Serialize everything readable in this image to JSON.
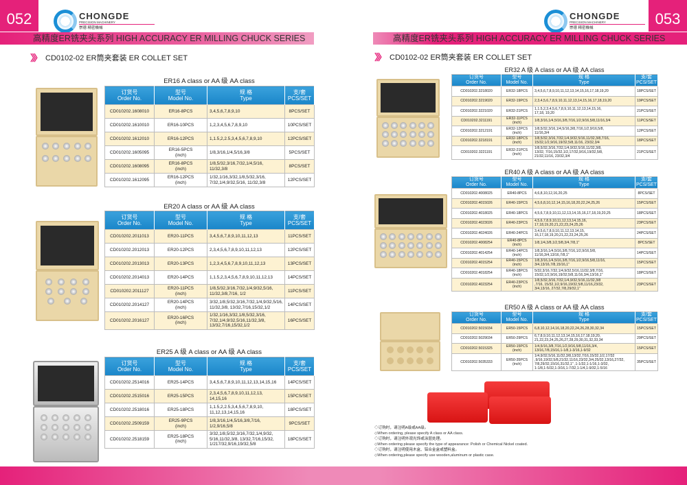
{
  "left_page": {
    "page_number": "052"
  },
  "right_page": {
    "page_number": "053"
  },
  "logo": {
    "name": "CHONGDE",
    "tagline": "PRECISION MACHINERY",
    "chinese": "崇德 精密機械"
  },
  "series_title": "高精度ER铣夹头系列   HIGH ACCURACY ER MILLING CHUCK SERIES",
  "section_title": "CD0102-02 ER筒夹套装  ER COLLET SET",
  "header": {
    "order_cn": "订货号",
    "order_en": "Order No.",
    "model_cn": "型号",
    "model_en": "Model No.",
    "type_cn": "规 格",
    "type_en": "Type",
    "pcs_cn": "支/套",
    "pcs_en": "PCS/SET"
  },
  "tables": [
    {
      "title": "ER16 A class  or AA 级 AA class",
      "rows": [
        [
          "CD010202.1608010",
          "ER16-8PCS",
          "3,4,5,6,7,8,9,10",
          "8PCS/SET"
        ],
        [
          "CD010202.1610010",
          "ER16-10PCS",
          "1,2,3,4,5,6,7,8,9,10",
          "10PCS/SET"
        ],
        [
          "CD010202.1612010",
          "ER16-12PCS",
          "1,1.5,2,2.5,3,4,5,6,7,8,9,10",
          "12PCS/SET"
        ],
        [
          "CD010202.1605095",
          "ER16-5PCS\n(inch)",
          "1/8,3/16,1/4,5/16,3/8",
          "5PCS/SET"
        ],
        [
          "CD010202.1608095",
          "ER16-8PCS\n(inch)",
          "1/8,5/32,3/16,7/32,1/4,5/16,\n11/32,3/8",
          "8PCS/SET"
        ],
        [
          "CD010202.1612095",
          "ER16-12PCS\n(inch)",
          "1/32,1/16,3/32,1/8,5/32,3/16,\n7/32,1/4,9/32,5/16, 11/32,3/8",
          "12PCS/SET"
        ]
      ]
    },
    {
      "title": "ER20 A class  or AA 级 AA class",
      "rows": [
        [
          "CD010202.2011013",
          "ER20-11PCS",
          "3,4,5,6,7,8,9,10,11,12,13",
          "11PCS/SET"
        ],
        [
          "CD010202.2012013",
          "ER20-12PCS",
          "2,3,4,5,6,7,8,9,10,11,12,13",
          "12PCS/SET"
        ],
        [
          "CD010202.2013013",
          "ER20-13PCS",
          "1,2,3,4,5,6,7,8,9,10,11,12,13",
          "13PCS/SET"
        ],
        [
          "CD010202.2014013",
          "ER20-14PCS",
          "1,1.5,2,3,4,5,6,7,8,9,10,11,12,13",
          "14PCS/SET"
        ],
        [
          "CD010202.2011127",
          "ER20-11PCS\n(inch)",
          "1/8,5/32,3/16,7/32,1/4,9/32,5/16,\n11/32,3/8,7/16, 1/2",
          "11PCS/SET"
        ],
        [
          "CD010202.2014127",
          "ER20-14PCS\n(inch)",
          "3/32,1/8,5/32,3/16,7/32,1/4,9/32,5/16,\n11/32,3/8, 13/32,7/16,15/32,1/2",
          "14PCS/SET"
        ],
        [
          "CD010202.2016127",
          "ER20-16PCS\n(inch)",
          "1/32,1/16,3/32,1/8,5/32,3/16,\n7/32,1/4,9/32,5/16,11/32,3/8,\n13/32,7/16,15/32,1/2",
          "16PCS/SET"
        ]
      ]
    },
    {
      "title": "ER25 A 级 A class  or AA 级 AA class",
      "rows": [
        [
          "CD010202.2514016",
          "ER25-14PCS",
          "3,4,5,6,7,8,9,10,11,12,13,14,15,16",
          "14PCS/SET"
        ],
        [
          "CD010202.2515016",
          "ER25-15PCS",
          "2,3,4,5,6,7,8,9,10,11,12,13,\n14,15,16",
          "15PCS/SET"
        ],
        [
          "CD010202.2518016",
          "ER25-18PCS",
          "1,1.5,2,2.5,3,4,5,6,7,8,9,10,\n11,12,13,14,15,16",
          "18PCS/SET"
        ],
        [
          "CD010202.2509159",
          "ER25-9PCS\n(inch)",
          "1/8,3/16,1/4,5/16,3/8,7/16,\n1/2,9/16,5/8",
          "9PCS/SET"
        ],
        [
          "CD010202.2518159",
          "ER25-18PCS\n(inch)",
          "3/32,1/8,5/32,3/16,7/32,1/4,9/32,\n5/16,11/32,3/8, 13/32,7/16,15/32,\n1/217/32,9/16,19/32,5/8",
          "18PCS/SET"
        ]
      ]
    },
    {
      "title": "ER32 A 级 A class or AA 级 AA class",
      "rows": [
        [
          "CD010202.3218020",
          "ER32-18PCS",
          "3,4,5,6,7,8,9,10,11,12,13,14,15,16,17,18,19,20",
          "18PCS/SET"
        ],
        [
          "CD010202.3219020",
          "ER32-19PCS",
          "2,3,4,5,6,7,8,9,10,11,12,13,14,15,16,17,18,19,20",
          "19PCS/SET"
        ],
        [
          "CD010202.3221020",
          "ER32-21PCS",
          "1,1.5,2,3,4,5,6,7,8,9,10,11,12,13,14,15,16,\n17,18, 19,20",
          "21PCS/SET"
        ],
        [
          "CD010202.3211191",
          "ER32-11PCS\n(inch)",
          "1/8,3/16,1/4,5/16,3/8,7/16,1/2,9/16,5/8,11/16,3/4",
          "11PCS/SET"
        ],
        [
          "CD010202.3212191",
          "ER32-12PCS\n(inch)",
          "1/8,5/32,3/16,1/4,5/16,3/8,7/16,1/2,9/16,5/8,\n11/16,3/4",
          "12PCS/SET"
        ],
        [
          "CD010202.3218191",
          "ER32-18PCS\n(inch)",
          "1/8,5/32,3/16,7/32,1/4,9/32,5/16,11/32,3/8,7/16,\n15/32,1/2,9/16,19/32,5/8,11/16, 23/32,3/4",
          "18PCS/SET"
        ],
        [
          "CD010202.3221191",
          "ER32-21PCS\n(inch)",
          "1/8,5/32,3/16,7/32,1/4,9/32,5/16,11/32,3/8,\n13/32, 7/16,15/32,1/2,17/32,9/16,19/32,5/8,\n21/32,11/16, 23/32,3/4",
          "21PCS/SET"
        ]
      ]
    },
    {
      "title": "ER40 A 级 A class or AA 级 AA class",
      "rows": [
        [
          "CD010202.4008025",
          "ER40-8PCS",
          "4,6,8,10,12,16,20,25",
          "8PCS/SET"
        ],
        [
          "CD010202.4015026",
          "ER40-15PCS",
          "4,5,6,8,10,12,14,15,16,18,20,22,24,25,26",
          "15PCS/SET"
        ],
        [
          "CD010202.4018025",
          "ER40-18PCS",
          "4,5,6,7,8,9,10,11,12,13,14,15,16,17,18,19,20,25",
          "18PCS/SET"
        ],
        [
          "CD010202.4023026",
          "ER40-23PCS",
          "4,5,6,7,8,9,10,11,12,13,14,15,16,\n17,18,19,20,21,22,23,24,25,26",
          "23PCS/SET"
        ],
        [
          "CD010202.4024026",
          "ER40-24PCS",
          "3,4,5,6,7,8,9,10,11,12,13,14,15,\n16,17,18,19,20,21,22,23,24,25,26",
          "24PCS/SET"
        ],
        [
          "CD010202.4008254",
          "ER40-8PCS\n(inch)",
          "1/8,1/4,3/8,1/2,5/8,3/4,7/8,1\"",
          "8PCS/SET"
        ],
        [
          "CD010202.4014254",
          "ER40-14PCS\n(inch)",
          "1/8,3/16,1/4,5/16,3/8,7/16,1/2,9/16,5/8,\n11/16,3/4,13/16,7/8,1\"",
          "14PCS/SET"
        ],
        [
          "CD010202.4015254",
          "ER40-15PCS\n(inch)",
          "1/8,3/16,1/4,5/16,3/8,7/16,1/2,9/16,5/8,11/16,\n3/4,13/16,7/8,15/16,1\"",
          "15PCS/SET"
        ],
        [
          "CD010202.4018254",
          "ER40-18PCS\n(inch)",
          "5/32,3/16,7/32,1/4,9/32,5/16,11/32,3/8,7/16,\n15/32,1/2,9/16,19/32,5/8,11/16,3/4,13/16,1\"",
          "18PCS/SET"
        ],
        [
          "CD010202.4023254",
          "ER40-23PCS\n(inch)",
          "1/8,5/32,3/16,7/32,1/4,9/32,5/16,11/32,3/8\n,7/16, 15/32,1/2,9/16,19/32,5/8,11/16,23/32,\n3/4,13/16, 27/32,7/8,29/32,1\"",
          "23PCS/SET"
        ]
      ]
    },
    {
      "title": "ER50 A 级 A class or AA 级 AA class",
      "rows": [
        [
          "CD010202.5015034",
          "ER50-15PCS",
          "6,8,10,12,14,16,18,20,22,24,26,28,30,32,34",
          "15PCS/SET"
        ],
        [
          "CD010202.5029034",
          "ER50-29PCS",
          "6,7,8,9,10,11,12,13,14,15,16,17,18,19,20,\n21,22,23,24,25,26,27,28,29,30,31,32,33,34",
          "29PCS/SET"
        ],
        [
          "CD010202.5015325",
          "ER50-15PCS\n(inch)",
          "1/4,5/16,3/8,7/16,1/2,9/16,5/8,11/16,3/4,\n13/16,7/8,15/16,1-1/8,1-3/16,1-9/32",
          "15PCS/SET"
        ],
        [
          "CD010202.5035333",
          "ER50-35PCS\n(inch)",
          "1/4,9/32,5/16,11/32,3/8,13/32,7/16,15/32,1/2,17/32\n,9/16,19/32,5/8,21/32,11/16,23/32,3/4,25/32,13/16,27/32,\n7/8,29/32,15/16,31/32,1\" ,1-1/32,1-1/16,1-3/32,\n1-1/8,1-5/32,1-3/16,1-7/32,1-1/4,1-9/32,1-5/16",
          "35PCS/SET"
        ]
      ]
    }
  ],
  "notes": [
    "◇订购时，请注明A级或AA级。",
    "◇When ordering, please specify A class or AA class.",
    "◇订购时，请注明外观光饰或涂层处理。",
    "◇When ordering please specify the type of appearance: Polish or Chemical Nickel coated.",
    "◇订购时，请注明使用木盒、铝合金盒或塑料盒。",
    "◇When ordering,please specify  use  wooden,aluminum or plastic case."
  ],
  "colors": {
    "brand_pink": "#e5217a",
    "header_blue": "#1a86c9",
    "row_shade": "#fdf2d2"
  }
}
